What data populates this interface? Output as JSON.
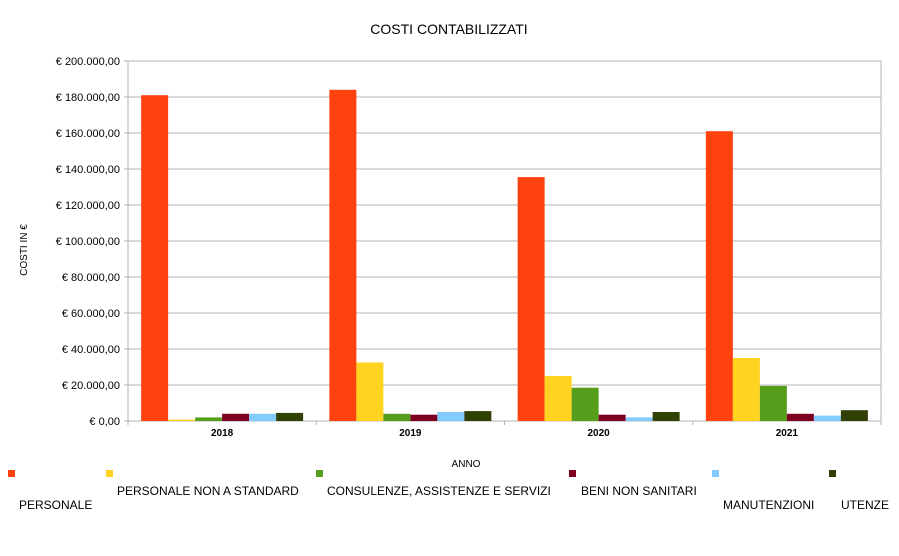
{
  "chart_data": {
    "type": "bar",
    "title": "COSTI CONTABILIZZATI",
    "xlabel": "ANNO",
    "ylabel": "COSTI IN €",
    "ylim": [
      0,
      200000
    ],
    "y_ticks": [
      "€ 0,00",
      "€ 20.000,00",
      "€ 40.000,00",
      "€ 60.000,00",
      "€ 80.000,00",
      "€ 100.000,00",
      "€ 120.000,00",
      "€ 140.000,00",
      "€ 160.000,00",
      "€ 180.000,00",
      "€ 200.000,00"
    ],
    "y_tick_values": [
      0,
      20000,
      40000,
      60000,
      80000,
      100000,
      120000,
      140000,
      160000,
      180000,
      200000
    ],
    "grid": true,
    "legend_position": "bottom",
    "categories": [
      "2018",
      "2019",
      "2020",
      "2021"
    ],
    "series": [
      {
        "name": "PERSONALE",
        "color": "#ff420e",
        "values": [
          181000,
          184000,
          135500,
          161000
        ]
      },
      {
        "name": "PERSONALE NON A STANDARD",
        "color": "#ffd320",
        "values": [
          800,
          32500,
          25000,
          35000
        ]
      },
      {
        "name": "CONSULENZE, ASSISTENZE E SERVIZI",
        "color": "#579d1c",
        "values": [
          2000,
          4000,
          18500,
          19500
        ]
      },
      {
        "name": "BENI NON SANITARI",
        "color": "#7e0021",
        "values": [
          4000,
          3500,
          3500,
          4000
        ]
      },
      {
        "name": "MANUTENZIONI",
        "color": "#83caff",
        "values": [
          4000,
          5000,
          2000,
          3000
        ]
      },
      {
        "name": "UTENZE",
        "color": "#314004",
        "values": [
          4500,
          5500,
          5000,
          6000
        ]
      }
    ]
  }
}
